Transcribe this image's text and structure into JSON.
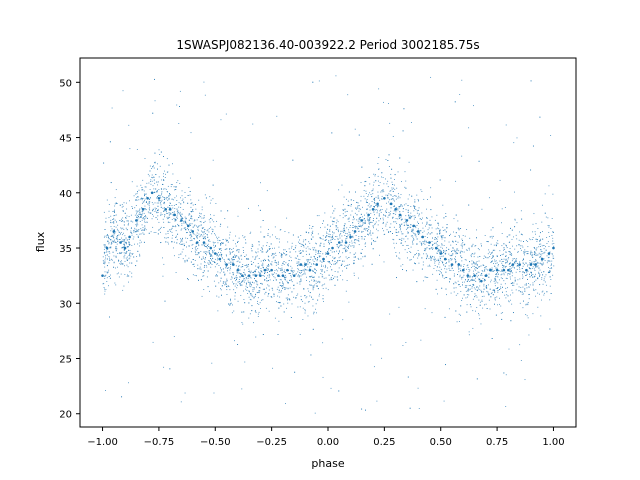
{
  "chart_data": {
    "type": "scatter",
    "title": "1SWASPJ082136.40-003922.2 Period 3002185.75s",
    "xlabel": "phase",
    "ylabel": "flux",
    "xlim": [
      -1.1,
      1.1
    ],
    "ylim": [
      18.8,
      52.2
    ],
    "xticks": [
      -1.0,
      -0.75,
      -0.5,
      -0.25,
      0.0,
      0.25,
      0.5,
      0.75,
      1.0
    ],
    "xtick_labels": [
      "−1.00",
      "−0.75",
      "−0.50",
      "−0.25",
      "0.00",
      "0.25",
      "0.50",
      "0.75",
      "1.00"
    ],
    "yticks": [
      20,
      25,
      30,
      35,
      40,
      45,
      50
    ],
    "ytick_labels": [
      "20",
      "25",
      "30",
      "35",
      "40",
      "45",
      "50"
    ],
    "grid": false,
    "legend": "none",
    "marker_color": "#1f77b4",
    "series": [
      {
        "x": [
          -1.0,
          -0.98,
          -0.95,
          -0.92,
          -0.9,
          -0.88,
          -0.85,
          -0.82,
          -0.8,
          -0.78,
          -0.75,
          -0.72,
          -0.7,
          -0.68,
          -0.65,
          -0.62,
          -0.6,
          -0.58,
          -0.55,
          -0.52,
          -0.5,
          -0.48,
          -0.45,
          -0.42,
          -0.4,
          -0.38,
          -0.35,
          -0.32,
          -0.3,
          -0.28,
          -0.25,
          -0.22,
          -0.2,
          -0.18,
          -0.15,
          -0.12,
          -0.1,
          -0.08,
          -0.05,
          -0.02,
          0.0,
          0.02,
          0.05,
          0.08,
          0.1,
          0.12,
          0.15,
          0.18,
          0.2,
          0.22,
          0.25,
          0.28,
          0.3,
          0.32,
          0.35,
          0.38,
          0.4,
          0.42,
          0.45,
          0.48,
          0.5,
          0.52,
          0.55,
          0.58,
          0.6,
          0.62,
          0.65,
          0.68,
          0.7,
          0.72,
          0.75,
          0.78,
          0.8,
          0.82,
          0.85,
          0.88,
          0.9,
          0.92,
          0.95,
          0.98,
          1.0
        ],
        "y": [
          32.5,
          35.0,
          36.5,
          35.5,
          35.0,
          36.0,
          37.5,
          38.5,
          39.5,
          40.0,
          39.5,
          38.5,
          38.5,
          38.0,
          37.5,
          37.0,
          36.5,
          35.5,
          35.5,
          35.0,
          34.5,
          34.0,
          33.5,
          33.5,
          33.0,
          32.5,
          32.5,
          32.5,
          32.5,
          33.0,
          33.0,
          32.5,
          32.5,
          33.0,
          32.5,
          33.5,
          33.5,
          33.0,
          33.5,
          34.0,
          34.5,
          35.0,
          35.5,
          35.5,
          36.0,
          36.5,
          37.5,
          38.0,
          38.5,
          39.0,
          39.5,
          39.0,
          38.5,
          38.0,
          37.5,
          37.0,
          36.5,
          36.0,
          35.5,
          35.0,
          34.5,
          34.0,
          33.5,
          33.5,
          33.0,
          32.5,
          32.5,
          32.0,
          32.5,
          33.0,
          33.0,
          33.0,
          33.0,
          33.5,
          33.5,
          33.0,
          33.5,
          33.5,
          34.0,
          34.5,
          35.0
        ]
      }
    ]
  }
}
